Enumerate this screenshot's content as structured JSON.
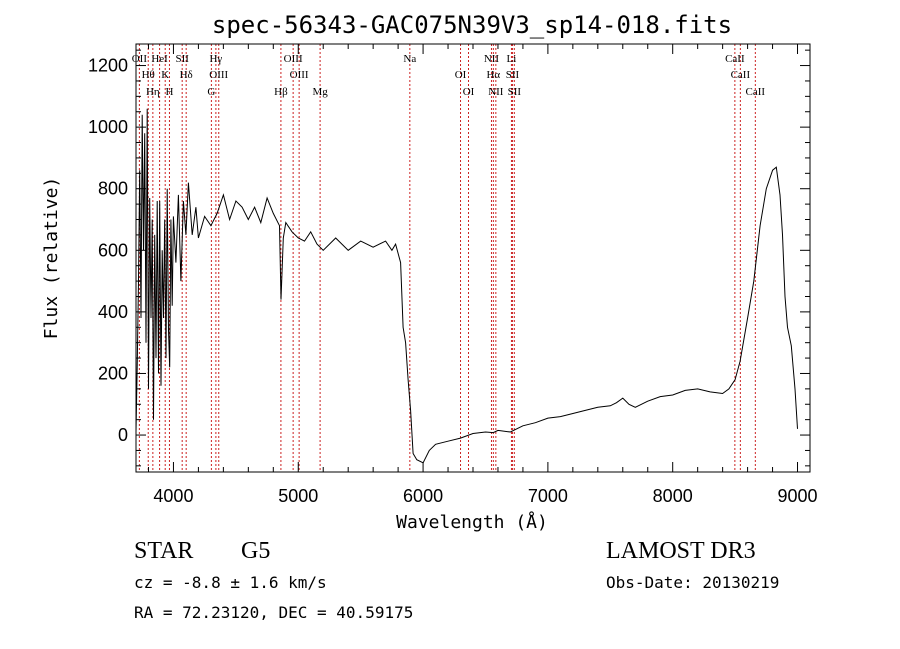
{
  "chart_data": {
    "type": "line",
    "title": "spec-56343-GAC075N39V3_sp14-018.fits",
    "xlabel": "Wavelength (Å)",
    "ylabel": "Flux (relative)",
    "xlim": [
      3700,
      9100
    ],
    "ylim": [
      -120,
      1270
    ],
    "xticks": [
      4000,
      5000,
      6000,
      7000,
      8000,
      9000
    ],
    "yticks": [
      0,
      200,
      400,
      600,
      800,
      1000,
      1200
    ],
    "grid": false,
    "series": [
      {
        "name": "spectrum",
        "x": [
          3700,
          3710,
          3720,
          3730,
          3740,
          3750,
          3760,
          3770,
          3780,
          3790,
          3800,
          3810,
          3820,
          3830,
          3840,
          3850,
          3860,
          3870,
          3880,
          3890,
          3900,
          3910,
          3920,
          3930,
          3940,
          3950,
          3960,
          3970,
          3980,
          3990,
          4000,
          4020,
          4040,
          4060,
          4080,
          4100,
          4120,
          4150,
          4180,
          4200,
          4250,
          4300,
          4350,
          4400,
          4450,
          4500,
          4550,
          4600,
          4650,
          4700,
          4750,
          4800,
          4850,
          4862,
          4880,
          4900,
          4950,
          5000,
          5050,
          5100,
          5150,
          5200,
          5300,
          5400,
          5500,
          5600,
          5700,
          5750,
          5780,
          5800,
          5820,
          5840,
          5860,
          5880,
          5900,
          5920,
          5950,
          6000,
          6050,
          6100,
          6200,
          6300,
          6400,
          6500,
          6563,
          6600,
          6700,
          6800,
          6900,
          7000,
          7100,
          7200,
          7300,
          7400,
          7500,
          7550,
          7600,
          7650,
          7700,
          7800,
          7900,
          8000,
          8100,
          8200,
          8300,
          8400,
          8450,
          8500,
          8540,
          8600,
          8650,
          8700,
          8750,
          8800,
          8830,
          8860,
          8880,
          8900,
          8920,
          8950,
          8980,
          9000
        ],
        "y": [
          10,
          220,
          500,
          860,
          380,
          1040,
          600,
          980,
          300,
          1060,
          150,
          770,
          380,
          700,
          50,
          650,
          250,
          760,
          200,
          760,
          160,
          600,
          380,
          700,
          250,
          800,
          340,
          220,
          700,
          420,
          710,
          560,
          780,
          500,
          760,
          650,
          820,
          650,
          740,
          640,
          710,
          680,
          720,
          780,
          700,
          760,
          740,
          700,
          740,
          690,
          770,
          720,
          680,
          440,
          640,
          690,
          660,
          640,
          630,
          660,
          620,
          600,
          640,
          600,
          630,
          610,
          630,
          600,
          620,
          590,
          560,
          350,
          300,
          180,
          80,
          -60,
          -80,
          -90,
          -50,
          -30,
          -20,
          -10,
          5,
          10,
          8,
          15,
          10,
          30,
          40,
          55,
          60,
          70,
          80,
          90,
          95,
          105,
          120,
          100,
          90,
          110,
          125,
          130,
          145,
          150,
          140,
          135,
          150,
          180,
          240,
          380,
          500,
          680,
          800,
          860,
          870,
          780,
          650,
          450,
          350,
          290,
          150,
          20
        ]
      }
    ],
    "lines": [
      {
        "label": "OII",
        "x": 3727
      },
      {
        "label": "Hθ",
        "x": 3798
      },
      {
        "label": "Hη",
        "x": 3835
      },
      {
        "label": "HeI",
        "x": 3889
      },
      {
        "label": "K",
        "x": 3934
      },
      {
        "label": "H",
        "x": 3968
      },
      {
        "label": "SII",
        "x": 4070
      },
      {
        "label": "Hδ",
        "x": 4102
      },
      {
        "label": "G",
        "x": 4304
      },
      {
        "label": "Hγ",
        "x": 4340
      },
      {
        "label": "OIII",
        "x": 4363
      },
      {
        "label": "Hβ",
        "x": 4861
      },
      {
        "label": "OIII",
        "x": 4959
      },
      {
        "label": "OIII",
        "x": 5007
      },
      {
        "label": "Mg",
        "x": 5175
      },
      {
        "label": "Na",
        "x": 5894
      },
      {
        "label": "OI",
        "x": 6300
      },
      {
        "label": "OI",
        "x": 6364
      },
      {
        "label": "NII",
        "x": 6548
      },
      {
        "label": "Hα",
        "x": 6563
      },
      {
        "label": "NII",
        "x": 6583
      },
      {
        "label": "Li",
        "x": 6708
      },
      {
        "label": "SII",
        "x": 6716
      },
      {
        "label": "SII",
        "x": 6731
      },
      {
        "label": "CaII",
        "x": 8498
      },
      {
        "label": "CaII",
        "x": 8542
      },
      {
        "label": "CaII",
        "x": 8662
      }
    ]
  },
  "info": {
    "object_class": "STAR",
    "subclass": "G5",
    "survey": "LAMOST DR3",
    "velocity": "cz = -8.8 ± 1.6 km/s",
    "obs_date": "Obs-Date: 20130219",
    "coords": "RA =  72.23120, DEC =  40.59175"
  },
  "colors": {
    "spectrum": "#000000",
    "line_markers": "#cc2222",
    "axes": "#000000"
  }
}
